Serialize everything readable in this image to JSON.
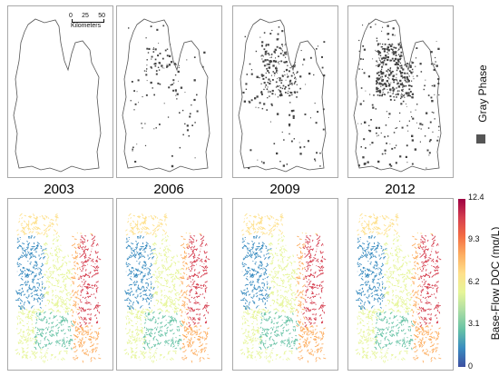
{
  "years": [
    "2003",
    "2006",
    "2009",
    "2012"
  ],
  "scale_bar": {
    "ticks": [
      "0",
      "25",
      "50"
    ],
    "unit": "Kilometers"
  },
  "gray_legend": {
    "label": "Gray Phase",
    "swatch_color": "#555555"
  },
  "colorbar": {
    "label": "Base-Flow DOC (mg/L)",
    "ticks": [
      "12.4",
      "9.3",
      "6.2",
      "3.1",
      "0"
    ],
    "min": 0,
    "max": 12.4,
    "colors": [
      "#3d4fa1",
      "#3a8cc0",
      "#66c2a5",
      "#abdda4",
      "#e6f598",
      "#fee08b",
      "#fdae61",
      "#f46d43",
      "#d53e4f",
      "#9e0142"
    ]
  },
  "gray_phase_coverage": [
    0.0,
    0.15,
    0.35,
    0.6
  ]
}
